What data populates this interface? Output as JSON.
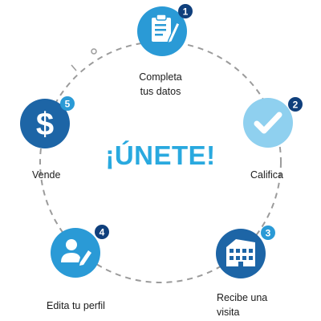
{
  "center_title": "¡ÚNETE!",
  "colors": {
    "dark_blue": "#1d65a6",
    "medium_blue": "#2a9ad6",
    "light_blue": "#8fd0ef",
    "title_blue": "#29a9df",
    "badge_navy": "#0f3f7c",
    "dashed_ring": "#9b9b9b"
  },
  "steps": [
    {
      "number": "1",
      "label_line1": "Completa",
      "label_line2": "tus datos",
      "icon": "clipboard-pencil-icon"
    },
    {
      "number": "2",
      "label_line1": "Califica",
      "label_line2": "",
      "icon": "checkmark-icon"
    },
    {
      "number": "3",
      "label_line1": "Recibe una",
      "label_line2": "visita",
      "icon": "building-icon"
    },
    {
      "number": "4",
      "label_line1": "Edita tu perfil",
      "label_line2": "",
      "icon": "user-pencil-icon"
    },
    {
      "number": "5",
      "label_line1": "Vende",
      "label_line2": "",
      "icon": "dollar-icon"
    }
  ]
}
